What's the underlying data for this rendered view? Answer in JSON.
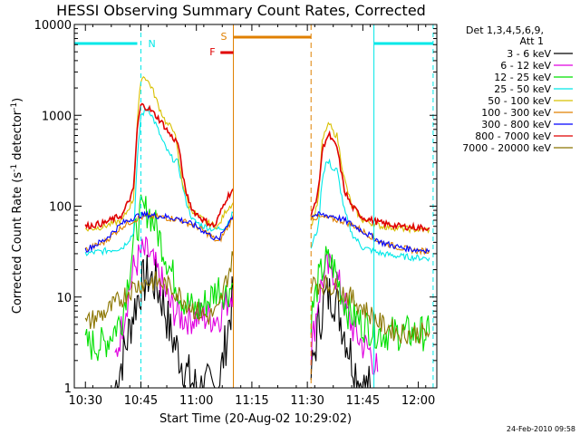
{
  "chart_data": {
    "type": "line",
    "title": "HESSI Observing Summary Count Rates, Corrected",
    "xlabel": "Start Time (20-Aug-02 10:29:02)",
    "ylabel": "Corrected Count Rate (s-1 detector-1)",
    "ylabel_parts": {
      "pre": "Corrected Count Rate (s",
      "sup1": "-1",
      "mid": " detector",
      "sup2": "-1",
      "post": ")"
    },
    "yscale": "log",
    "ylim": [
      1,
      10000
    ],
    "xlim": [
      "10:27",
      "12:05"
    ],
    "x_ticks": [
      "10:30",
      "10:45",
      "11:00",
      "11:15",
      "11:30",
      "11:45",
      "12:00"
    ],
    "y_ticks": [
      "1",
      "10",
      "100",
      "1000",
      "10000"
    ],
    "legend": {
      "header": [
        "Det 1,3,4,5,6,9,",
        "Att 1"
      ],
      "placement": "right-outside",
      "entries": [
        {
          "label": "3 - 6 keV",
          "color": "#000000"
        },
        {
          "label": "6 - 12 keV",
          "color": "#e000e0"
        },
        {
          "label": "12 - 25 keV",
          "color": "#00e000"
        },
        {
          "label": "25 - 50 keV",
          "color": "#00e8e8"
        },
        {
          "label": "50 - 100 keV",
          "color": "#d8c000"
        },
        {
          "label": "100 - 300 keV",
          "color": "#e08000"
        },
        {
          "label": "300 - 800 keV",
          "color": "#0000ff"
        },
        {
          "label": "800 - 7000 keV",
          "color": "#e00000"
        },
        {
          "label": "7000 - 20000 keV",
          "color": "#8b7500"
        }
      ]
    },
    "annotations": {
      "night_label": "N",
      "saa_label": "S",
      "flare_label": "F",
      "night_intervals": [
        [
          "10:27",
          "10:45"
        ],
        [
          "11:48",
          "12:04"
        ]
      ],
      "saa_interval": [
        "11:10",
        "11:31"
      ],
      "flare_interval": [
        "11:07",
        "11:10"
      ]
    },
    "series": [
      {
        "name": "3 - 6 keV",
        "color": "#000000",
        "x": [
          "10:38",
          "10:41",
          "10:43",
          "10:45",
          "10:47",
          "10:49",
          "10:51",
          "10:53",
          "10:56",
          "10:58",
          "11:00",
          "11:03",
          "11:06",
          "11:09",
          "11:10"
        ],
        "y": [
          1,
          3,
          7,
          13,
          17,
          14,
          9,
          4,
          2,
          1.3,
          1,
          1,
          1,
          6,
          11
        ],
        "x2": [
          "11:31",
          "11:33",
          "11:35",
          "11:37",
          "11:39",
          "11:41",
          "11:43",
          "11:45",
          "11:47"
        ],
        "y2": [
          1.3,
          5,
          10,
          11,
          6,
          3,
          1.6,
          1,
          1
        ]
      },
      {
        "name": "6 - 12 keV",
        "color": "#e000e0",
        "x": [
          "10:38",
          "10:41",
          "10:43",
          "10:45",
          "10:47",
          "10:49",
          "10:51",
          "10:53",
          "10:56",
          "10:58",
          "11:00",
          "11:03",
          "11:06",
          "11:09",
          "11:10"
        ],
        "y": [
          2,
          8,
          20,
          30,
          30,
          20,
          13,
          8,
          6,
          6,
          6,
          6,
          6,
          10,
          13
        ],
        "x2": [
          "11:31",
          "11:33",
          "11:35",
          "11:37",
          "11:39",
          "11:41",
          "11:43",
          "11:45",
          "11:47",
          "11:49"
        ],
        "y2": [
          2.5,
          10,
          20,
          20,
          12,
          6,
          4,
          3,
          2.5,
          1.5
        ]
      },
      {
        "name": "12 - 25 keV",
        "color": "#00e000",
        "x": [
          "10:30",
          "10:35",
          "10:40",
          "10:43",
          "10:45",
          "10:47",
          "10:49",
          "10:51",
          "10:53",
          "10:56",
          "10:58",
          "11:00",
          "11:03",
          "11:06",
          "11:08",
          "11:10"
        ],
        "y": [
          3,
          3,
          6,
          40,
          85,
          90,
          60,
          35,
          20,
          10,
          8,
          7,
          9,
          13,
          11,
          14
        ],
        "x2": [
          "11:31",
          "11:33",
          "11:35",
          "11:37",
          "11:39",
          "11:41",
          "11:45",
          "11:50",
          "11:55",
          "12:00",
          "12:03"
        ],
        "y2": [
          6,
          15,
          25,
          22,
          12,
          7,
          5,
          4,
          4,
          4,
          4
        ]
      },
      {
        "name": "25 - 50 keV",
        "color": "#00e8e8",
        "x": [
          "10:30",
          "10:35",
          "10:40",
          "10:43",
          "10:44",
          "10:45",
          "10:47",
          "10:49",
          "10:51",
          "10:53",
          "10:55",
          "10:57",
          "10:59",
          "11:02",
          "11:05",
          "11:08",
          "11:10"
        ],
        "y": [
          30,
          32,
          35,
          50,
          300,
          1000,
          1200,
          800,
          500,
          350,
          300,
          120,
          70,
          60,
          55,
          60,
          85
        ],
        "x2": [
          "11:31",
          "11:33",
          "11:34",
          "11:35",
          "11:36",
          "11:37",
          "11:38",
          "11:40",
          "11:42",
          "11:45",
          "11:50",
          "11:55",
          "12:00",
          "12:03"
        ],
        "y2": [
          35,
          60,
          200,
          300,
          300,
          250,
          250,
          90,
          50,
          35,
          30,
          28,
          27,
          27
        ]
      },
      {
        "name": "50 - 100 keV",
        "color": "#d8c000",
        "x": [
          "10:30",
          "10:35",
          "10:40",
          "10:43",
          "10:44",
          "10:45",
          "10:46",
          "10:48",
          "10:50",
          "10:52",
          "10:54",
          "10:56",
          "10:58",
          "11:00",
          "11:03",
          "11:06",
          "11:08",
          "11:10"
        ],
        "y": [
          55,
          60,
          70,
          120,
          800,
          2500,
          2700,
          2000,
          1200,
          800,
          700,
          200,
          100,
          80,
          65,
          60,
          90,
          110
        ],
        "x2": [
          "11:31",
          "11:33",
          "11:34",
          "11:35",
          "11:36",
          "11:37",
          "11:38",
          "11:40",
          "11:42",
          "11:45",
          "11:50",
          "11:55",
          "12:00",
          "12:03"
        ],
        "y2": [
          60,
          120,
          500,
          700,
          800,
          650,
          600,
          200,
          100,
          70,
          60,
          57,
          55,
          55
        ]
      },
      {
        "name": "100 - 300 keV",
        "color": "#e08000",
        "x": [
          "10:30",
          "10:35",
          "10:40",
          "10:43",
          "10:45",
          "10:47",
          "10:50",
          "10:55",
          "11:00",
          "11:03",
          "11:06",
          "11:08",
          "11:10"
        ],
        "y": [
          33,
          40,
          60,
          70,
          75,
          78,
          76,
          72,
          60,
          50,
          40,
          55,
          75
        ],
        "x2": [
          "11:31",
          "11:34",
          "11:37",
          "11:40",
          "11:43",
          "11:46",
          "11:50",
          "11:55",
          "12:00",
          "12:03"
        ],
        "y2": [
          75,
          75,
          72,
          68,
          60,
          50,
          40,
          35,
          32,
          32
        ]
      },
      {
        "name": "300 - 800 keV",
        "color": "#0000ff",
        "x": [
          "10:30",
          "10:35",
          "10:40",
          "10:43",
          "10:45",
          "10:47",
          "10:50",
          "10:55",
          "11:00",
          "11:03",
          "11:06",
          "11:08",
          "11:10"
        ],
        "y": [
          33,
          42,
          65,
          75,
          80,
          80,
          78,
          73,
          60,
          50,
          42,
          60,
          80
        ],
        "x2": [
          "11:31",
          "11:34",
          "11:37",
          "11:40",
          "11:43",
          "11:46",
          "11:50",
          "11:55",
          "12:00",
          "12:03"
        ],
        "y2": [
          80,
          80,
          78,
          70,
          60,
          50,
          40,
          35,
          33,
          33
        ]
      },
      {
        "name": "800 - 7000 keV",
        "color": "#e00000",
        "x": [
          "10:30",
          "10:35",
          "10:40",
          "10:43",
          "10:44",
          "10:45",
          "10:47",
          "10:49",
          "10:51",
          "10:53",
          "10:55",
          "10:57",
          "10:59",
          "11:02",
          "11:05",
          "11:08",
          "11:10"
        ],
        "y": [
          60,
          65,
          80,
          150,
          700,
          1300,
          1200,
          1000,
          800,
          600,
          500,
          150,
          90,
          70,
          60,
          120,
          155
        ],
        "x2": [
          "11:31",
          "11:33",
          "11:34",
          "11:35",
          "11:36",
          "11:37",
          "11:38",
          "11:40",
          "11:42",
          "11:45",
          "11:50",
          "11:55",
          "12:00",
          "12:03"
        ],
        "y2": [
          75,
          150,
          400,
          550,
          600,
          500,
          450,
          150,
          100,
          75,
          65,
          60,
          58,
          58
        ]
      },
      {
        "name": "7000 - 20000 keV",
        "color": "#8b7500",
        "x": [
          "10:30",
          "10:33",
          "10:36",
          "10:39",
          "10:42",
          "10:45",
          "10:48",
          "10:51",
          "10:54",
          "10:57",
          "11:00",
          "11:03",
          "11:06",
          "11:08",
          "11:10"
        ],
        "y": [
          5,
          6,
          7,
          9,
          12,
          14,
          15,
          14,
          12,
          9,
          7,
          6,
          7,
          15,
          28
        ],
        "x2": [
          "11:31",
          "11:34",
          "11:37",
          "11:40",
          "11:43",
          "11:46",
          "11:50",
          "11:55",
          "12:00",
          "12:03"
        ],
        "y2": [
          14,
          14,
          13,
          11,
          9,
          7,
          5,
          4,
          4,
          4
        ]
      }
    ]
  },
  "footer": {
    "timestamp": "24-Feb-2010 09:58"
  }
}
